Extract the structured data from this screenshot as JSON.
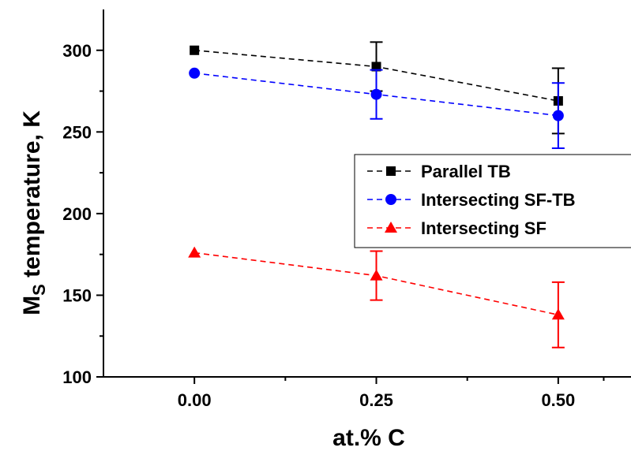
{
  "chart_data": {
    "type": "line",
    "x": [
      0.0,
      0.25,
      0.5
    ],
    "x_tick_labels": [
      "0.00",
      "0.25",
      "0.50"
    ],
    "xlabel": "at.% C",
    "ylabel_main": "M",
    "ylabel_sub": "S",
    "ylabel_rest": " temperature, K",
    "xlim": [
      -0.125,
      0.6
    ],
    "ylim": [
      100,
      325
    ],
    "y_ticks": [
      100,
      150,
      200,
      250,
      300
    ],
    "y_tick_labels": [
      "100",
      "150",
      "200",
      "250",
      "300"
    ],
    "grid": false,
    "legend_position": "right",
    "series": [
      {
        "name": "Parallel TB",
        "marker": "square",
        "color": "#000000",
        "values": [
          300,
          290,
          269
        ],
        "err": [
          0,
          15,
          20
        ]
      },
      {
        "name": "Intersecting SF-TB",
        "marker": "circle",
        "color": "#0000ff",
        "values": [
          286,
          273,
          260
        ],
        "err": [
          0,
          15,
          20
        ]
      },
      {
        "name": "Intersecting SF",
        "marker": "triangle",
        "color": "#ff0000",
        "values": [
          176,
          162,
          138
        ],
        "err": [
          0,
          15,
          20
        ]
      }
    ]
  }
}
